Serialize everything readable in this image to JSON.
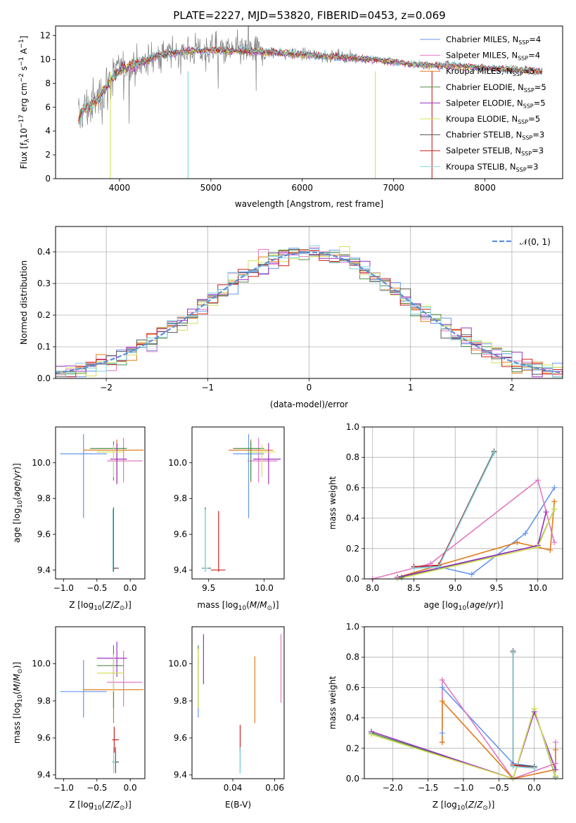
{
  "page": {
    "title": "PLATE=2227, MJD=53820, FIBERID=0453, z=0.069"
  },
  "models": [
    {
      "label": "Chabrier MILES, N",
      "sub": "SSP",
      "suffix": "=4",
      "color": "#6495ed"
    },
    {
      "label": "Salpeter MILES, N",
      "sub": "SSP",
      "suffix": "=4",
      "color": "#e377c2"
    },
    {
      "label": "Kroupa MILES, N",
      "sub": "SSP",
      "suffix": "=5",
      "color": "#e07b1a"
    },
    {
      "label": "Chabrier ELODIE, N",
      "sub": "SSP",
      "suffix": "=5",
      "color": "#4e8f4e"
    },
    {
      "label": "Salpeter ELODIE, N",
      "sub": "SSP",
      "suffix": "=5",
      "color": "#9b30c0"
    },
    {
      "label": "Kroupa ELODIE, N",
      "sub": "SSP",
      "suffix": "=5",
      "color": "#d4e157"
    },
    {
      "label": "Chabrier STELIB, N",
      "sub": "SSP",
      "suffix": "=3",
      "color": "#555555"
    },
    {
      "label": "Salpeter STELIB, N",
      "sub": "SSP",
      "suffix": "=3",
      "color": "#cc1f1f"
    },
    {
      "label": "Kroupa STELIB, N",
      "sub": "SSP",
      "suffix": "=3",
      "color": "#7fd6dc"
    }
  ],
  "chart_data": [
    {
      "id": "spectrum",
      "type": "line",
      "xlabel": "wavelength [Angstrom, rest frame]",
      "ylabel": "Flux [f",
      "ylabel_parts": [
        "Flux [f",
        "λ",
        "10",
        "−17",
        " erg cm",
        "−2",
        " s",
        "−1",
        " A",
        "−1",
        "]"
      ],
      "xlim": [
        3300,
        8850
      ],
      "ylim": [
        0,
        12.8
      ],
      "xticks": [
        "4000",
        "5000",
        "6000",
        "7000",
        "8000"
      ],
      "yticks": [
        "0",
        "2",
        "4",
        "6",
        "8",
        "10",
        "12"
      ],
      "legend": "right",
      "data_color": "#808080",
      "model_curve": {
        "x": [
          3550,
          3600,
          3700,
          3800,
          3900,
          4000,
          4100,
          4200,
          4300,
          4400,
          4500,
          4600,
          4700,
          4800,
          4900,
          5000,
          5200,
          5400,
          5600,
          5800,
          6000,
          6200,
          6400,
          6600,
          6800,
          7000,
          7200,
          7400,
          7600,
          7800,
          8000,
          8200,
          8400,
          8600
        ],
        "y": [
          4.8,
          5.8,
          6.2,
          7.0,
          8.3,
          9.1,
          9.4,
          9.6,
          9.9,
          10.3,
          10.4,
          10.6,
          10.6,
          10.8,
          10.7,
          10.8,
          10.7,
          10.7,
          10.6,
          10.5,
          10.4,
          10.3,
          10.2,
          10.1,
          10.0,
          9.8,
          9.6,
          9.5,
          9.5,
          9.4,
          9.3,
          9.2,
          9.1,
          9.0
        ]
      }
    },
    {
      "id": "residuals",
      "type": "area",
      "xlabel": "(data-model)/error",
      "ylabel": "Normed distribution",
      "xlim": [
        -2.5,
        2.5
      ],
      "ylim": [
        0,
        0.48
      ],
      "xticks": [
        "−2",
        "−1",
        "0",
        "1",
        "2"
      ],
      "yticks": [
        "0.0",
        "0.1",
        "0.2",
        "0.3",
        "0.4"
      ],
      "grid": true,
      "legend": "top-right",
      "legend_label": "𝒩(0, 1)",
      "normal_color": "#5b8fd9",
      "bin_width": 0.1
    },
    {
      "id": "age-vs-Z",
      "type": "scatter",
      "xlabel": "Z [log10(Z/Z⊙)]",
      "ylabel": "age  [log10(age/yr)]",
      "xlim": [
        -1.12,
        0.22
      ],
      "ylim": [
        9.35,
        10.2
      ],
      "xticks": [
        "−1.0",
        "−0.5",
        "0.0"
      ],
      "yticks": [
        "9.4",
        "9.6",
        "9.8",
        "10.0"
      ],
      "points": [
        {
          "m": 0,
          "x": -0.7,
          "y": 10.05,
          "xe": [
            -1.05,
            -0.35
          ],
          "ye": [
            9.69,
            10.16
          ]
        },
        {
          "m": 1,
          "x": -0.1,
          "y": 10.01,
          "xe": [
            -0.35,
            0.18
          ],
          "ye": [
            9.89,
            10.14
          ]
        },
        {
          "m": 2,
          "x": -0.2,
          "y": 10.07,
          "xe": [
            -0.7,
            0.2
          ],
          "ye": [
            9.89,
            10.13
          ]
        },
        {
          "m": 3,
          "x": -0.25,
          "y": 10.08,
          "xe": [
            -0.6,
            -0.05
          ],
          "ye": [
            9.9,
            10.12
          ]
        },
        {
          "m": 4,
          "x": -0.2,
          "y": 10.02,
          "xe": [
            -0.3,
            -0.05
          ],
          "ye": [
            9.88,
            10.11
          ]
        },
        {
          "m": 5,
          "x": -0.25,
          "y": 10.06,
          "xe": [
            -0.5,
            -0.1
          ],
          "ye": [
            9.92,
            10.1
          ]
        },
        {
          "m": 6,
          "x": -0.25,
          "y": 9.41,
          "xe": [
            -0.27,
            -0.17
          ],
          "ye": [
            9.39,
            9.75
          ]
        },
        {
          "m": 7,
          "x": -0.26,
          "y": 9.41,
          "xe": [
            -0.27,
            -0.22
          ],
          "ye": [
            9.39,
            9.73
          ]
        },
        {
          "m": 8,
          "x": -0.26,
          "y": 9.41,
          "xe": [
            -0.27,
            -0.25
          ],
          "ye": [
            9.39,
            9.74
          ]
        }
      ]
    },
    {
      "id": "age-vs-mass",
      "type": "scatter",
      "xlabel": "mass [log10(M/M⊙)]",
      "ylabel": "",
      "xlim": [
        9.35,
        10.18
      ],
      "ylim": [
        9.35,
        10.2
      ],
      "xticks": [
        "9.5",
        "10.0"
      ],
      "yticks": [
        "9.4",
        "9.6",
        "9.8",
        "10.0"
      ],
      "points": [
        {
          "m": 0,
          "x": 9.86,
          "y": 10.05,
          "xe": [
            9.72,
            10.0
          ],
          "ye": [
            9.69,
            10.16
          ]
        },
        {
          "m": 1,
          "x": 9.95,
          "y": 10.01,
          "xe": [
            9.85,
            10.12
          ],
          "ye": [
            9.89,
            10.14
          ]
        },
        {
          "m": 2,
          "x": 9.88,
          "y": 10.07,
          "xe": [
            9.68,
            10.08
          ],
          "ye": [
            9.89,
            10.13
          ]
        },
        {
          "m": 3,
          "x": 9.88,
          "y": 10.08,
          "xe": [
            9.72,
            10.0
          ],
          "ye": [
            9.9,
            10.12
          ]
        },
        {
          "m": 4,
          "x": 10.04,
          "y": 10.02,
          "xe": [
            9.9,
            10.15
          ],
          "ye": [
            9.88,
            10.11
          ]
        },
        {
          "m": 5,
          "x": 9.98,
          "y": 10.06,
          "xe": [
            9.85,
            10.1
          ],
          "ye": [
            9.92,
            10.1
          ]
        },
        {
          "m": 6,
          "x": 9.47,
          "y": 9.41,
          "xe": [
            9.44,
            9.52
          ],
          "ye": [
            9.39,
            9.75
          ]
        },
        {
          "m": 7,
          "x": 9.59,
          "y": 9.4,
          "xe": [
            9.52,
            9.65
          ],
          "ye": [
            9.39,
            9.73
          ]
        },
        {
          "m": 8,
          "x": 9.47,
          "y": 9.41,
          "xe": [
            9.45,
            9.5
          ],
          "ye": [
            9.39,
            9.74
          ]
        }
      ]
    },
    {
      "id": "weight-vs-age",
      "type": "line",
      "xlabel": "age  [log10(age/yr)]",
      "ylabel": "mass weight",
      "xlim": [
        7.9,
        10.3
      ],
      "ylim": [
        0,
        1.0
      ],
      "xticks": [
        "8.0",
        "8.5",
        "9.0",
        "9.5",
        "10.0"
      ],
      "yticks": [
        "0.0",
        "0.2",
        "0.4",
        "0.6",
        "0.8",
        "1.0"
      ],
      "grid": true,
      "series": [
        {
          "m": 0,
          "x": [
            8.5,
            8.8,
            9.2,
            9.85,
            10.2
          ],
          "y": [
            0.08,
            0.08,
            0.03,
            0.3,
            0.6
          ]
        },
        {
          "m": 1,
          "x": [
            8.0,
            8.7,
            10.0,
            10.2
          ],
          "y": [
            0.0,
            0.1,
            0.65,
            0.24
          ]
        },
        {
          "m": 2,
          "x": [
            8.3,
            9.75,
            10.15,
            10.2
          ],
          "y": [
            0.01,
            0.24,
            0.19,
            0.51
          ]
        },
        {
          "m": 3,
          "x": [
            8.35,
            10.0,
            10.2
          ],
          "y": [
            0.01,
            0.22,
            0.46
          ]
        },
        {
          "m": 4,
          "x": [
            8.3,
            10.0,
            10.1
          ],
          "y": [
            0.01,
            0.22,
            0.44
          ]
        },
        {
          "m": 5,
          "x": [
            8.3,
            10.0,
            10.2
          ],
          "y": [
            0.0,
            0.21,
            0.46
          ]
        },
        {
          "m": 6,
          "x": [
            8.5,
            8.8,
            9.47
          ],
          "y": [
            0.08,
            0.09,
            0.84
          ]
        },
        {
          "m": 7,
          "x": [
            8.5,
            8.8,
            9.47
          ],
          "y": [
            0.08,
            0.09,
            0.83
          ]
        },
        {
          "m": 8,
          "x": [
            8.5,
            8.8,
            9.47
          ],
          "y": [
            0.07,
            0.08,
            0.83
          ]
        }
      ]
    },
    {
      "id": "mass-vs-Z",
      "type": "scatter",
      "xlabel": "Z [log10(Z/Z⊙)]",
      "ylabel": "mass [log10(M/M⊙)]",
      "xlim": [
        -1.12,
        0.22
      ],
      "ylim": [
        9.38,
        10.2
      ],
      "xticks": [
        "−1.0",
        "−0.5",
        "0.0"
      ],
      "yticks": [
        "9.4",
        "9.6",
        "9.8",
        "10.0"
      ],
      "points": [
        {
          "m": 0,
          "x": -0.7,
          "y": 9.85,
          "xe": [
            -1.05,
            -0.35
          ],
          "ye": [
            9.71,
            10.02
          ]
        },
        {
          "m": 1,
          "x": -0.1,
          "y": 9.9,
          "xe": [
            -0.35,
            0.18
          ],
          "ye": [
            9.77,
            10.07
          ]
        },
        {
          "m": 2,
          "x": -0.25,
          "y": 9.86,
          "xe": [
            -0.7,
            0.2
          ],
          "ye": [
            9.68,
            10.04
          ]
        },
        {
          "m": 3,
          "x": -0.25,
          "y": 9.99,
          "xe": [
            -0.5,
            -0.1
          ],
          "ye": [
            9.76,
            10.1
          ]
        },
        {
          "m": 4,
          "x": -0.2,
          "y": 10.03,
          "xe": [
            -0.5,
            -0.05
          ],
          "ye": [
            9.93,
            10.12
          ]
        },
        {
          "m": 5,
          "x": -0.25,
          "y": 9.95,
          "xe": [
            -0.5,
            -0.1
          ],
          "ye": [
            9.85,
            10.05
          ]
        },
        {
          "m": 6,
          "x": -0.22,
          "y": 9.47,
          "xe": [
            -0.27,
            -0.17
          ],
          "ye": [
            9.41,
            9.55
          ]
        },
        {
          "m": 7,
          "x": -0.24,
          "y": 9.59,
          "xe": [
            -0.27,
            -0.17
          ],
          "ye": [
            9.52,
            9.66
          ]
        },
        {
          "m": 8,
          "x": -0.25,
          "y": 9.47,
          "xe": [
            -0.27,
            -0.22
          ],
          "ye": [
            9.41,
            9.55
          ]
        }
      ]
    },
    {
      "id": "mass-vs-EBV",
      "type": "scatter",
      "xlabel": "E(B-V)",
      "ylabel": "",
      "xlim": [
        0.0205,
        0.0645
      ],
      "ylim": [
        9.38,
        10.2
      ],
      "xticks": [
        "0.04",
        "0.06"
      ],
      "yticks": [
        "9.4",
        "9.6",
        "9.8",
        "10.0"
      ],
      "points": [
        {
          "m": 0,
          "x": 0.0235,
          "y": 9.85,
          "ye": [
            9.71,
            10.02
          ]
        },
        {
          "m": 1,
          "x": 0.063,
          "y": 9.9,
          "ye": [
            9.79,
            10.16
          ]
        },
        {
          "m": 2,
          "x": 0.0505,
          "y": 9.86,
          "ye": [
            9.68,
            10.04
          ]
        },
        {
          "m": 3,
          "x": 0.0235,
          "y": 9.99,
          "ye": [
            9.76,
            10.1
          ]
        },
        {
          "m": 4,
          "x": 0.026,
          "y": 10.03,
          "ye": [
            9.89,
            10.16
          ]
        },
        {
          "m": 5,
          "x": 0.0235,
          "y": 9.95,
          "ye": [
            9.76,
            10.08
          ]
        },
        {
          "m": 6,
          "x": 0.0435,
          "y": 9.47,
          "ye": [
            9.41,
            9.55
          ]
        },
        {
          "m": 7,
          "x": 0.0435,
          "y": 9.59,
          "ye": [
            9.52,
            9.67
          ]
        },
        {
          "m": 8,
          "x": 0.0435,
          "y": 9.47,
          "ye": [
            9.41,
            9.55
          ]
        }
      ]
    },
    {
      "id": "weight-vs-Z",
      "type": "line",
      "xlabel": "Z [log10(Z/Z⊙)]",
      "ylabel": "mass weight",
      "xlim": [
        -2.4,
        0.4
      ],
      "ylim": [
        0,
        1.0
      ],
      "xticks": [
        "−2.0",
        "−1.5",
        "−1.0",
        "−0.5",
        "0.0"
      ],
      "yticks": [
        "0.0",
        "0.2",
        "0.4",
        "0.6",
        "0.8",
        "1.0"
      ],
      "grid": true,
      "series": [
        {
          "m": 0,
          "x": [
            -1.3,
            -1.3,
            -0.3,
            0.0
          ],
          "y": [
            0.3,
            0.6,
            0.1,
            0.08
          ]
        },
        {
          "m": 1,
          "x": [
            -1.3,
            -1.3,
            -0.3,
            0.3,
            0.3
          ],
          "y": [
            0.24,
            0.65,
            0.0,
            0.1,
            0.24
          ]
        },
        {
          "m": 2,
          "x": [
            -1.3,
            -1.3,
            -0.3,
            0.3,
            0.3
          ],
          "y": [
            0.24,
            0.51,
            0.0,
            0.06,
            0.19
          ]
        },
        {
          "m": 3,
          "x": [
            -2.3,
            -0.3,
            0.0,
            0.3
          ],
          "y": [
            0.3,
            0.0,
            0.46,
            0.01
          ]
        },
        {
          "m": 4,
          "x": [
            -2.3,
            -0.3,
            0.0,
            0.3
          ],
          "y": [
            0.31,
            0.0,
            0.44,
            0.06
          ]
        },
        {
          "m": 5,
          "x": [
            -2.3,
            -0.3,
            0.0,
            0.3
          ],
          "y": [
            0.29,
            0.0,
            0.46,
            0.02
          ]
        },
        {
          "m": 6,
          "x": [
            -0.3,
            -0.3,
            0.0
          ],
          "y": [
            0.84,
            0.09,
            0.08
          ]
        },
        {
          "m": 7,
          "x": [
            -0.3,
            -0.3,
            0.0
          ],
          "y": [
            0.83,
            0.09,
            0.07
          ]
        },
        {
          "m": 8,
          "x": [
            -0.3,
            -0.3,
            0.0
          ],
          "y": [
            0.83,
            0.08,
            0.07
          ]
        }
      ]
    }
  ]
}
